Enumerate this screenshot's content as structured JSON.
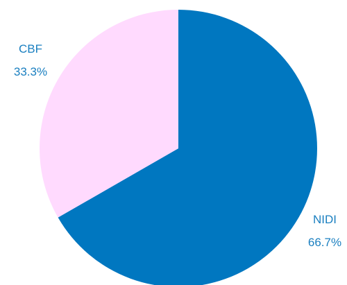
{
  "chart_data": {
    "type": "pie",
    "title": "",
    "start_angle_deg": 0,
    "direction": "clockwise",
    "slices": [
      {
        "label": "NIDI",
        "value": 66.7,
        "value_label": "66.7%",
        "color": "#0077c0"
      },
      {
        "label": "CBF",
        "value": 33.3,
        "value_label": "33.3%",
        "color": "#ffdafe"
      }
    ],
    "label_color": "#1a7fc0"
  }
}
